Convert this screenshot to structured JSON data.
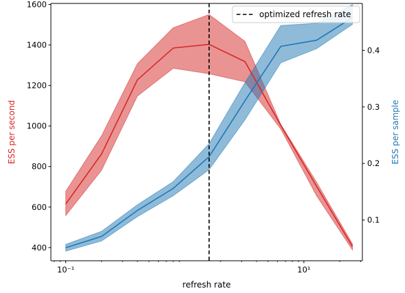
{
  "chart_data": {
    "type": "line",
    "xlabel": "refresh rate",
    "ylabel_left": "ESS per second",
    "ylabel_right": "ESS per sample",
    "x_scale": "log",
    "xlim": [
      0.075,
      31
    ],
    "ylim_left": [
      335,
      1605
    ],
    "ylim_right": [
      0.028,
      0.483
    ],
    "x": [
      0.1,
      0.2,
      0.4,
      0.8,
      1.6,
      3.2,
      6.4,
      12.8,
      25.6
    ],
    "series": [
      {
        "axis": "left",
        "color": "#d62728",
        "values": [
          615,
          862,
          1228,
          1385,
          1403,
          1318,
          1003,
          702,
          405
        ],
        "lower": [
          558,
          782,
          1148,
          1285,
          1258,
          1218,
          985,
          655,
          388
        ],
        "upper": [
          678,
          952,
          1308,
          1485,
          1550,
          1418,
          1008,
          722,
          418
        ]
      },
      {
        "axis": "right",
        "color": "#1f77b4",
        "values": [
          0.051,
          0.071,
          0.117,
          0.156,
          0.212,
          0.311,
          0.407,
          0.418,
          0.458
        ],
        "lower": [
          0.045,
          0.063,
          0.106,
          0.143,
          0.189,
          0.277,
          0.378,
          0.403,
          0.446
        ],
        "upper": [
          0.057,
          0.08,
          0.127,
          0.168,
          0.235,
          0.343,
          0.444,
          0.448,
          0.481
        ]
      }
    ],
    "vline": {
      "x": 1.6,
      "label": "optimized refresh rate",
      "color": "#000000",
      "style": "dashed"
    },
    "legend": {
      "position": "top-right"
    },
    "yticks_left": [
      400,
      600,
      800,
      1000,
      1200,
      1400,
      1600
    ],
    "ytick_labels_left": [
      "400",
      "600",
      "800",
      "1000",
      "1200",
      "1400",
      "1600"
    ],
    "yticks_right": [
      0.1,
      0.2,
      0.3,
      0.4
    ],
    "ytick_labels_right": [
      "0.1",
      "0.2",
      "0.3",
      "0.4"
    ],
    "xticks_major": [
      0.1,
      10
    ],
    "xtick_labels": [
      "10⁻¹",
      "10¹"
    ],
    "grid": false
  }
}
